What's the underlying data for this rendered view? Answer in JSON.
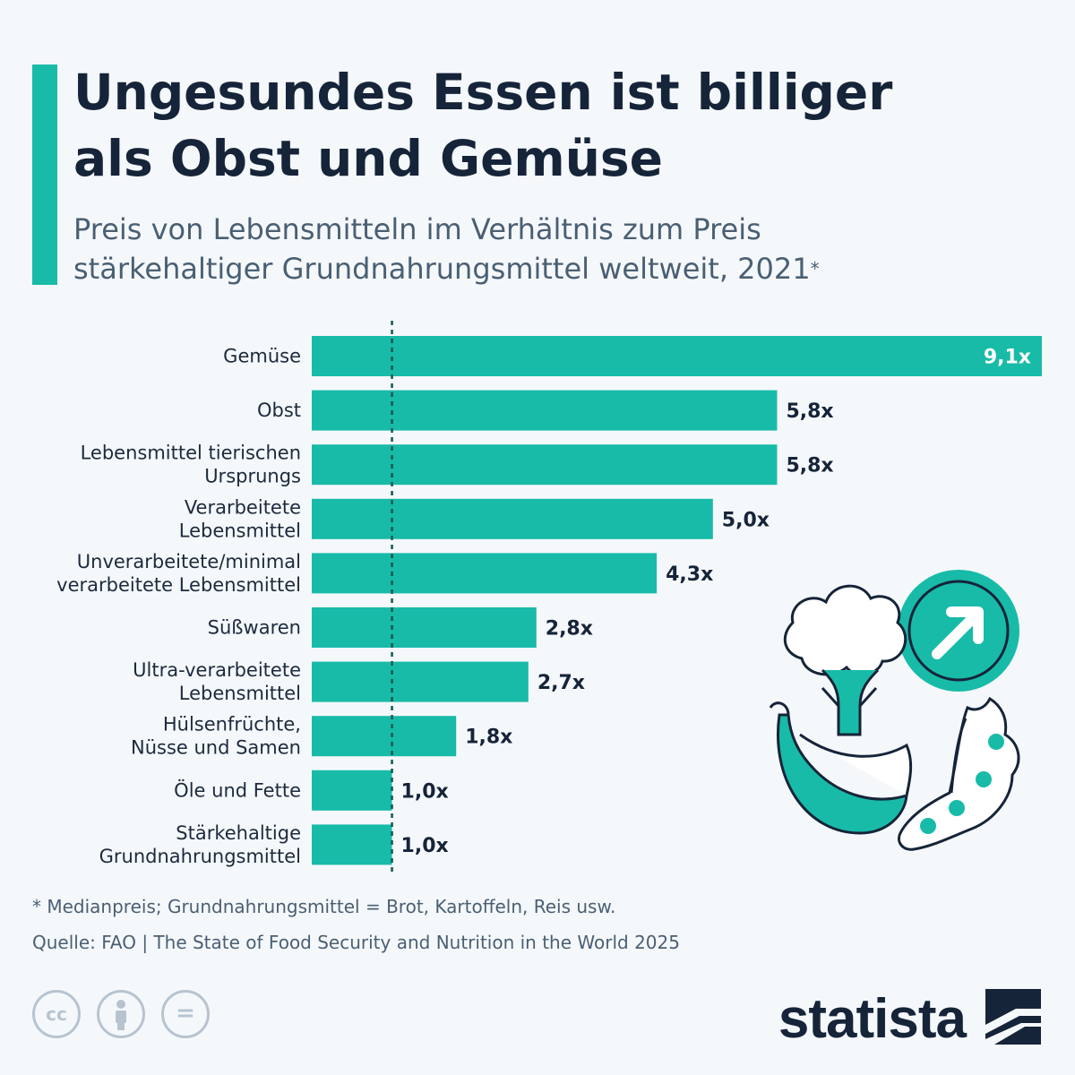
{
  "header": {
    "title_line1": "Ungesundes Essen ist billiger",
    "title_line2": "als Obst und Gemüse",
    "subtitle_line1": "Preis von Lebensmitteln im Verhältnis zum Preis",
    "subtitle_line2": "stärkehaltiger Grundnahrungsmittel weltweit, 2021",
    "subtitle_mark": "*"
  },
  "chart_data": {
    "type": "bar",
    "orientation": "horizontal",
    "categories": [
      [
        "Gemüse"
      ],
      [
        "Obst"
      ],
      [
        "Lebensmittel tierischen",
        "Ursprungs"
      ],
      [
        "Verarbeitete",
        "Lebensmittel"
      ],
      [
        "Unverarbeitete/minimal",
        "verarbeitete Lebensmittel"
      ],
      [
        "Süßwaren"
      ],
      [
        "Ultra-verarbeitete",
        "Lebensmittel"
      ],
      [
        "Hülsenfrüchte,",
        "Nüsse und Samen"
      ],
      [
        "Öle und Fette"
      ],
      [
        "Stärkehaltige",
        "Grundnahrungsmittel"
      ]
    ],
    "values": [
      9.1,
      5.8,
      5.8,
      5.0,
      4.3,
      2.8,
      2.7,
      1.8,
      1.0,
      1.0
    ],
    "value_labels": [
      "9,1x",
      "5,8x",
      "5,8x",
      "5,0x",
      "4,3x",
      "2,8x",
      "2,7x",
      "1,8x",
      "1,0x",
      "1,0x"
    ],
    "reference_line": 1.0,
    "xlim": [
      0,
      9.1
    ],
    "colors": {
      "bar": "#18bba8",
      "label_on_bar": "#ffffff",
      "label": "#162439",
      "reference_line": "#0e5a50"
    }
  },
  "footer": {
    "footnote": "* Medianpreis; Grundnahrungsmittel = Brot, Kartoffeln, Reis usw.",
    "source": "Quelle: FAO | The State of Food Security and Nutrition in the World 2025",
    "license_icons": [
      "cc-icon",
      "attribution-icon",
      "no-derivatives-icon"
    ],
    "cc_label": "cc",
    "nd_label": "=",
    "brand": "statista"
  },
  "colors": {
    "accent": "#18bba8",
    "title": "#162439",
    "subtitle": "#4a5f73",
    "background": "#f5f8fb"
  }
}
